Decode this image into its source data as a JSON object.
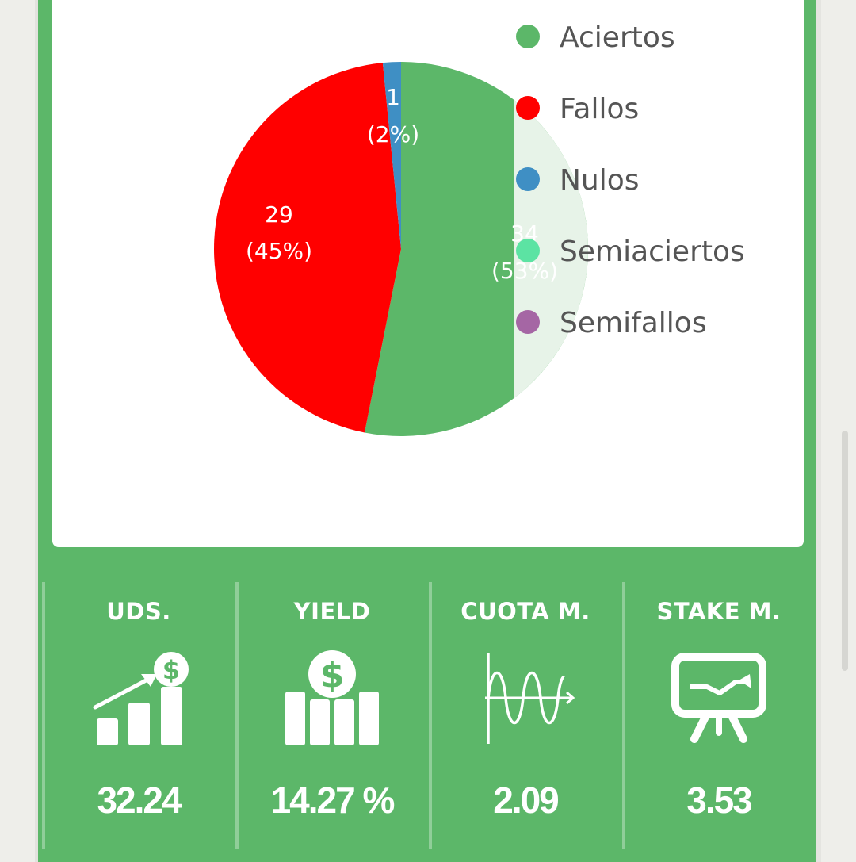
{
  "colors": {
    "panel": "#5cb769",
    "card": "#ffffff",
    "aciertos": "#5cb769",
    "fallos": "#ff0000",
    "nulos": "#3f8fc4",
    "semiaciertos": "#5ce3a3",
    "semifallos": "#a566a4"
  },
  "chart_data": {
    "type": "pie",
    "legend_position": "right",
    "slices": [
      {
        "name": "Aciertos",
        "value": 34,
        "percent": "53%",
        "value_label": "34",
        "percent_label": "(53%)",
        "color": "#5cb769"
      },
      {
        "name": "Fallos",
        "value": 29,
        "percent": "45%",
        "value_label": "29",
        "percent_label": "(45%)",
        "color": "#ff0000"
      },
      {
        "name": "Nulos",
        "value": 1,
        "percent": "2%",
        "value_label": "1",
        "percent_label": "(2%)",
        "color": "#3f8fc4"
      }
    ],
    "legend": [
      {
        "label": "Aciertos",
        "color": "#5cb769"
      },
      {
        "label": "Fallos",
        "color": "#ff0000"
      },
      {
        "label": "Nulos",
        "color": "#3f8fc4"
      },
      {
        "label": "Semiaciertos",
        "color": "#5ce3a3"
      },
      {
        "label": "Semifallos",
        "color": "#a566a4"
      }
    ]
  },
  "stats": [
    {
      "title": "UDS.",
      "value": "32.24",
      "icon": "growth-chart-dollar-icon"
    },
    {
      "title": "YIELD",
      "value": "14.27 %",
      "icon": "dollar-bar-chart-icon"
    },
    {
      "title": "CUOTA M.",
      "value": "2.09",
      "icon": "sine-wave-graph-icon"
    },
    {
      "title": "STAKE M.",
      "value": "3.53",
      "icon": "presentation-board-icon"
    }
  ]
}
